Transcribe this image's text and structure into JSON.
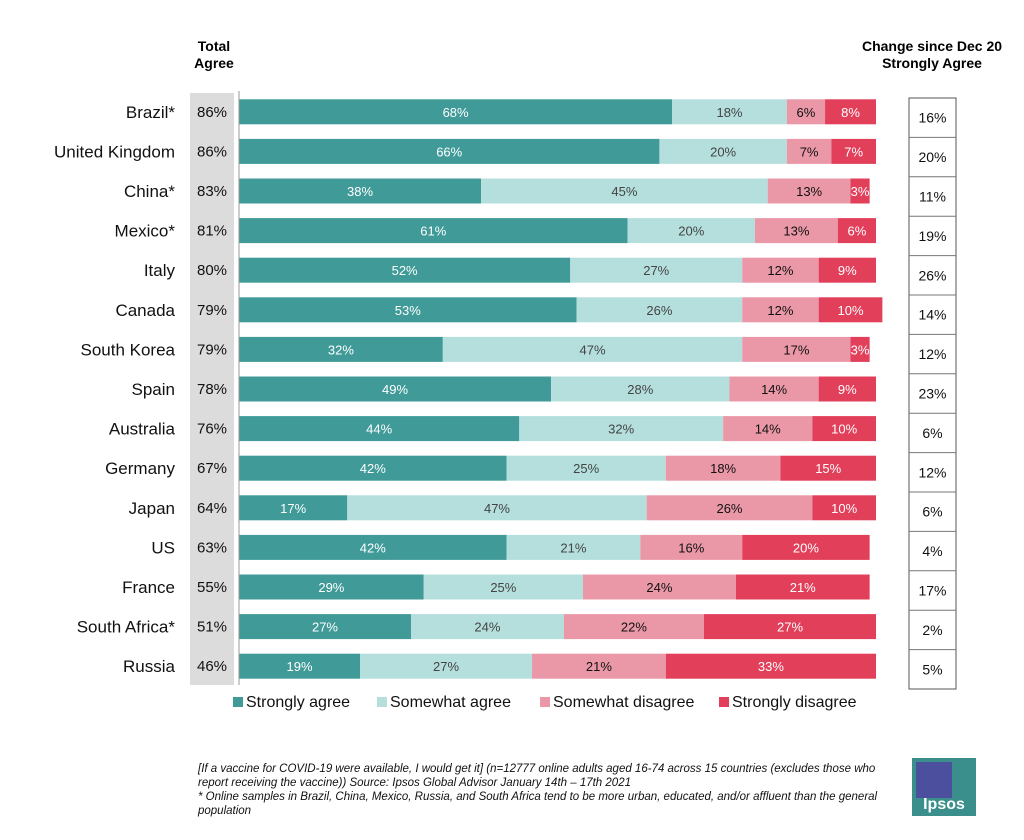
{
  "header": {
    "total_agree_line1": "Total",
    "total_agree_line2": "Agree",
    "change_line1": "Change since Dec 20",
    "change_line2": "Strongly Agree"
  },
  "colors": {
    "strongly_agree": "#3f9a98",
    "somewhat_agree": "#b4dfdd",
    "somewhat_disagree": "#ea98a8",
    "strongly_disagree": "#e13f5a",
    "total_column_bg": "#dcdcdc"
  },
  "chart_data": {
    "type": "bar",
    "orientation": "horizontal",
    "stacked": true,
    "categories": [
      "Brazil*",
      "United Kingdom",
      "China*",
      "Mexico*",
      "Italy",
      "Canada",
      "South Korea",
      "Spain",
      "Australia",
      "Germany",
      "Japan",
      "US",
      "France",
      "South Africa*",
      "Russia"
    ],
    "series": [
      {
        "name": "Strongly agree",
        "values": [
          68,
          66,
          38,
          61,
          52,
          53,
          32,
          49,
          44,
          42,
          17,
          42,
          29,
          27,
          19
        ]
      },
      {
        "name": "Somewhat agree",
        "values": [
          18,
          20,
          45,
          20,
          27,
          26,
          47,
          28,
          32,
          25,
          47,
          21,
          25,
          24,
          27
        ]
      },
      {
        "name": "Somewhat disagree",
        "values": [
          6,
          7,
          13,
          13,
          12,
          12,
          17,
          14,
          14,
          18,
          26,
          16,
          24,
          22,
          21
        ]
      },
      {
        "name": "Strongly disagree",
        "values": [
          8,
          7,
          3,
          6,
          9,
          10,
          3,
          9,
          10,
          15,
          10,
          20,
          21,
          27,
          33
        ]
      }
    ],
    "total_agree": [
      "86%",
      "86%",
      "83%",
      "81%",
      "80%",
      "79%",
      "79%",
      "78%",
      "76%",
      "67%",
      "64%",
      "63%",
      "55%",
      "51%",
      "46%"
    ],
    "change_strongly_agree": [
      "16%",
      "20%",
      "11%",
      "19%",
      "26%",
      "14%",
      "12%",
      "23%",
      "6%",
      "12%",
      "6%",
      "4%",
      "17%",
      "2%",
      "5%"
    ],
    "value_suffix": "%",
    "xlim": [
      0,
      100
    ],
    "legend_position": "bottom"
  },
  "footnotes": {
    "line1": "[If a vaccine for COVID-19 were available, I would get it] (n=12777 online adults aged 16-74 across 15 countries (excludes those who report receiving the vaccine)) Source: Ipsos Global Advisor January 14th – 17th 2021",
    "line2": "* Online samples in Brazil, China, Mexico, Russia, and South Africa tend to be more urban, educated, and/or affluent than the general population"
  },
  "logo": {
    "text": "Ipsos"
  }
}
